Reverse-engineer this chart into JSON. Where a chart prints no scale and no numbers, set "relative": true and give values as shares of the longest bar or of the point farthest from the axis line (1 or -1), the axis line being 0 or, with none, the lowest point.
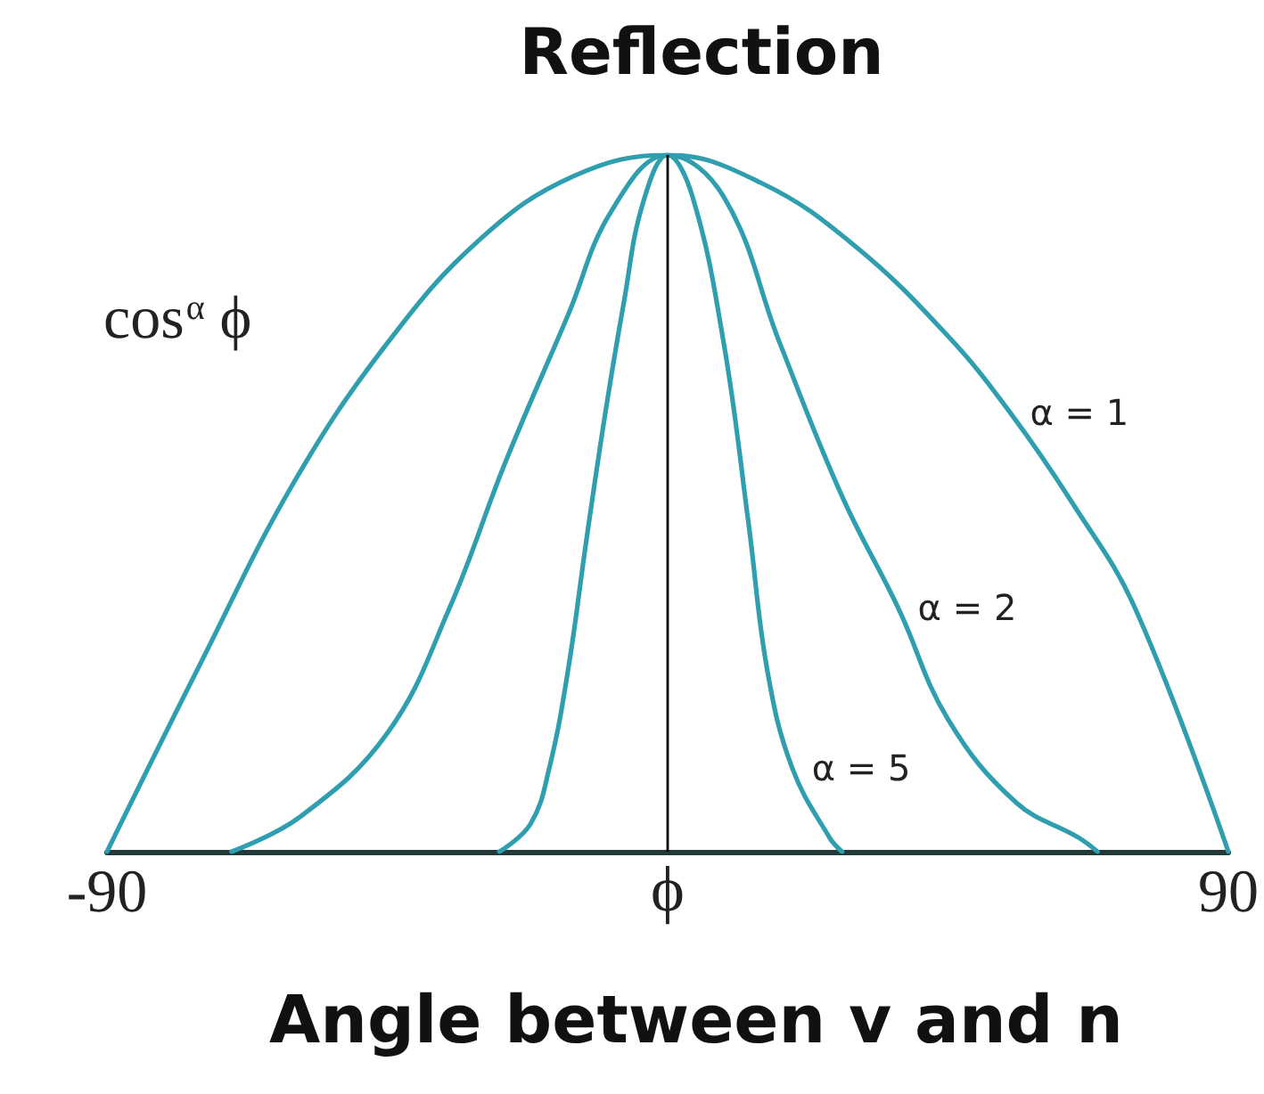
{
  "chart_data": {
    "type": "line",
    "title": "Reflection",
    "xlabel": "ϕ",
    "ylabel": "cos$^{α}$ ϕ",
    "annotations": [
      "Angle between v and n"
    ],
    "relative": true,
    "xlim": [
      -90,
      90
    ],
    "xticks": [
      -90,
      90
    ],
    "marker": "none",
    "line_style": "solid",
    "ref_lines": [
      {
        "axis": "x",
        "value": 0,
        "color": "#000000"
      }
    ],
    "series": [
      {
        "name": "α = 1",
        "color": "#2f9fb0",
        "x": [
          -90,
          -75,
          -60,
          -45,
          -30,
          -15,
          0,
          15,
          30,
          45,
          55,
          65,
          75,
          90
        ],
        "values": [
          0,
          0.27,
          0.53,
          0.73,
          0.88,
          0.97,
          1,
          0.96,
          0.87,
          0.74,
          0.63,
          0.5,
          0.35,
          0
        ]
      },
      {
        "name": "α = 2",
        "color": "#2f9fb0",
        "x": [
          -70,
          -59,
          -45,
          -35,
          -26,
          -16,
          -9,
          0,
          9,
          18,
          28,
          37,
          45,
          56,
          66,
          69
        ],
        "values": [
          0,
          0.05,
          0.17,
          0.35,
          0.56,
          0.77,
          0.92,
          1,
          0.94,
          0.73,
          0.51,
          0.35,
          0.19,
          0.07,
          0.02,
          0
        ]
      },
      {
        "name": "α = 5",
        "color": "#2f9fb0",
        "x": [
          -27,
          -22,
          -19,
          -16,
          -13,
          -10,
          -7,
          -4,
          0,
          4,
          9,
          13,
          16,
          20,
          26,
          28
        ],
        "values": [
          0,
          0.04,
          0.12,
          0.26,
          0.45,
          0.63,
          0.79,
          0.93,
          1,
          0.94,
          0.73,
          0.47,
          0.26,
          0.12,
          0.02,
          0
        ]
      }
    ]
  }
}
